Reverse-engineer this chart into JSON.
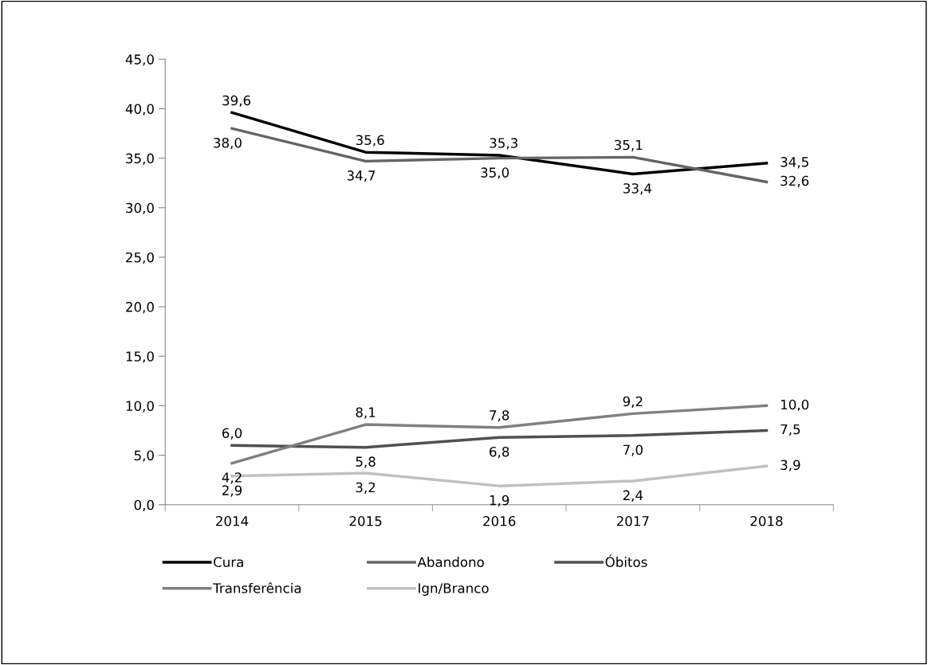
{
  "chart_data": {
    "type": "line",
    "categories": [
      "2014",
      "2015",
      "2016",
      "2017",
      "2018"
    ],
    "series": [
      {
        "name": "Cura",
        "color": "#000000",
        "values": [
          39.6,
          35.6,
          35.3,
          33.4,
          34.5
        ],
        "value_labels": [
          "39,6",
          "35,6",
          "35,3",
          "33,4",
          "34,5"
        ]
      },
      {
        "name": "Abandono",
        "color": "#646464",
        "values": [
          38.0,
          34.7,
          35.0,
          35.1,
          32.6
        ],
        "value_labels": [
          "38,0",
          "34,7",
          "35,0",
          "35,1",
          "32,6"
        ]
      },
      {
        "name": "Óbitos",
        "color": "#505050",
        "values": [
          6.0,
          5.8,
          6.8,
          7.0,
          7.5
        ],
        "value_labels": [
          "6,0",
          "5,8",
          "6,8",
          "7,0",
          "7,5"
        ]
      },
      {
        "name": "Transferência",
        "color": "#808080",
        "values": [
          4.2,
          8.1,
          7.8,
          9.2,
          10.0
        ],
        "value_labels": [
          "4,2",
          "8,1",
          "7,8",
          "9,2",
          "10,0"
        ]
      },
      {
        "name": "Ign/Branco",
        "color": "#c0c0c0",
        "values": [
          2.9,
          3.2,
          1.9,
          2.4,
          3.9
        ],
        "value_labels": [
          "2,9",
          "3,2",
          "1,9",
          "2,4",
          "3,9"
        ]
      }
    ],
    "ylim": [
      0,
      45
    ],
    "yticks": [
      {
        "value": 0,
        "label": "0,0"
      },
      {
        "value": 5,
        "label": "5,0"
      },
      {
        "value": 10,
        "label": "10,0"
      },
      {
        "value": 15,
        "label": "15,0"
      },
      {
        "value": 20,
        "label": "20,0"
      },
      {
        "value": 25,
        "label": "25,0"
      },
      {
        "value": 30,
        "label": "30,0"
      },
      {
        "value": 35,
        "label": "35,0"
      },
      {
        "value": 40,
        "label": "40,0"
      },
      {
        "value": 45,
        "label": "45,0"
      }
    ],
    "grid": false,
    "legend": "bottom",
    "marker": "none",
    "line_style": "solid"
  }
}
